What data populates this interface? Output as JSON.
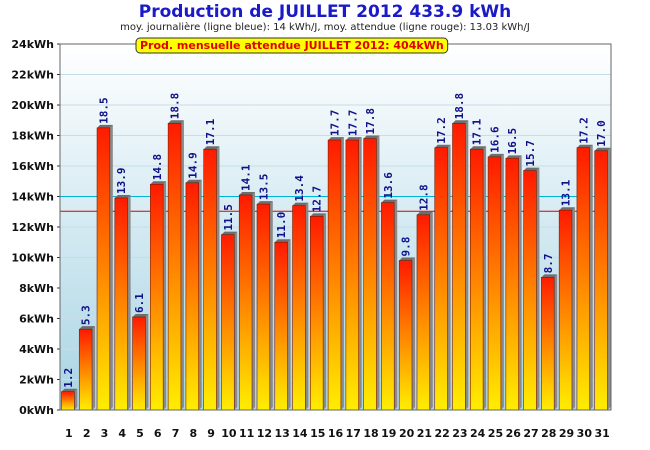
{
  "chart_data": {
    "type": "bar",
    "title": "Production de JUILLET 2012  433.9 kWh",
    "subtitle": "moy. journalière (ligne bleue): 14 kWh/J,   moy. attendue (ligne rouge): 13.03 kWh/J",
    "annotation": "Prod. mensuelle attendue JUILLET 2012: 404kWh",
    "categories": [
      "1",
      "2",
      "3",
      "4",
      "5",
      "6",
      "7",
      "8",
      "9",
      "10",
      "11",
      "12",
      "13",
      "14",
      "15",
      "16",
      "17",
      "18",
      "19",
      "20",
      "21",
      "22",
      "23",
      "24",
      "25",
      "26",
      "27",
      "28",
      "29",
      "30",
      "31"
    ],
    "values": [
      1.2,
      5.3,
      18.5,
      13.9,
      6.1,
      14.8,
      18.8,
      14.9,
      17.1,
      11.5,
      14.1,
      13.5,
      11.0,
      13.4,
      12.7,
      17.7,
      17.7,
      17.8,
      13.6,
      9.8,
      12.8,
      17.2,
      18.8,
      17.1,
      16.6,
      16.5,
      15.7,
      8.7,
      13.1,
      17.2,
      17.0
    ],
    "data_labels": [
      "1.2",
      "5.3",
      "18.5",
      "13.9",
      "6.1",
      "14.8",
      "18.8",
      "14.9",
      "17.1",
      "11.5",
      "14.1",
      "13.5",
      "11.0",
      "13.4",
      "12.7",
      "17.7",
      "17.7",
      "17.8",
      "13.6",
      "9.8",
      "12.8",
      "17.2",
      "18.8",
      "17.1",
      "16.6",
      "16.5",
      "15.7",
      "8.7",
      "13.1",
      "17.2",
      "17.0"
    ],
    "yticks": [
      "0kWh",
      "2kWh",
      "4kWh",
      "6kWh",
      "8kWh",
      "10kWh",
      "12kWh",
      "14kWh",
      "16kWh",
      "18kWh",
      "20kWh",
      "22kWh",
      "24kWh"
    ],
    "ylim": [
      0,
      24
    ],
    "reference_lines": [
      {
        "label": "moy. journalière",
        "value": 14,
        "color": "#00b4d8"
      },
      {
        "label": "moy. attendue",
        "value": 13.03,
        "color": "#e00000"
      }
    ],
    "grid": true,
    "colors": {
      "bar_top": "#ff1a00",
      "bar_bottom": "#ffee00",
      "bar_side": "#8a8a8a",
      "plot_bg_top": "#ffffff",
      "plot_bg_bottom": "#a8d4e4",
      "annotation_bg": "#ffff00",
      "title": "#1a1ac8",
      "data_label": "#101088"
    }
  }
}
